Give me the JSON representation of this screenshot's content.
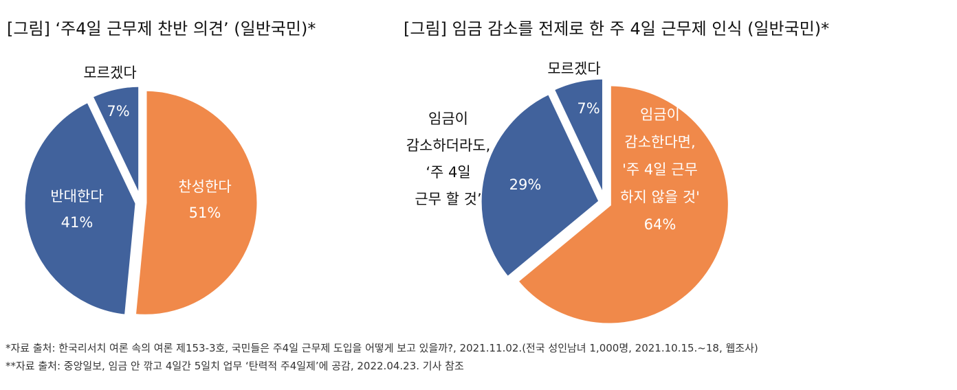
{
  "titles": {
    "left": "[그림] ‘주4일 근무제 찬반 의견’ (일반국민)*",
    "right": "[그림] 임금 감소를 전제로 한 주 4일 근무제 인식 (일반국민)*"
  },
  "chart_data": [
    {
      "type": "pie",
      "title": "[그림] ‘주4일 근무제 찬반 의견’ (일반국민)*",
      "slices": [
        {
          "label": "찬성한다",
          "value": 51,
          "display": "51%",
          "color": "#F0894A"
        },
        {
          "label": "반대한다",
          "value": 41,
          "display": "41%",
          "color": "#41629C"
        },
        {
          "label": "모르겠다",
          "value": 7,
          "display": "7%",
          "color": "#41629C"
        }
      ]
    },
    {
      "type": "pie",
      "title": "[그림] 임금 감소를 전제로 한 주 4일 근무제 인식 (일반국민)*",
      "slices": [
        {
          "label": "임금이\n감소한다면,\n'주 4일 근무\n하지 않을 것'",
          "value": 64,
          "display": "64%",
          "color": "#F0894A"
        },
        {
          "label": "임금이\n감소하더라도,\n‘주 4일\n근무 할 것’",
          "value": 29,
          "display": "29%",
          "color": "#41629C"
        },
        {
          "label": "모르겠다",
          "value": 7,
          "display": "7%",
          "color": "#41629C"
        }
      ]
    }
  ],
  "footnotes": [
    "*자료 출처: 한국리서치 여론 속의 여론 제153-3호, 국민들은 주4일 근무제 도입을 어떻게 보고 있을까?, 2021.11.02.(전국 성인남녀 1,000명, 2021.10.15.~18, 웹조사)",
    "**자료 출처: 중앙일보, 임금 안 깎고 4일간 5일치 업무 ‘탄력적 주4일제’에 공감, 2022.04.23. 기사 참조"
  ]
}
